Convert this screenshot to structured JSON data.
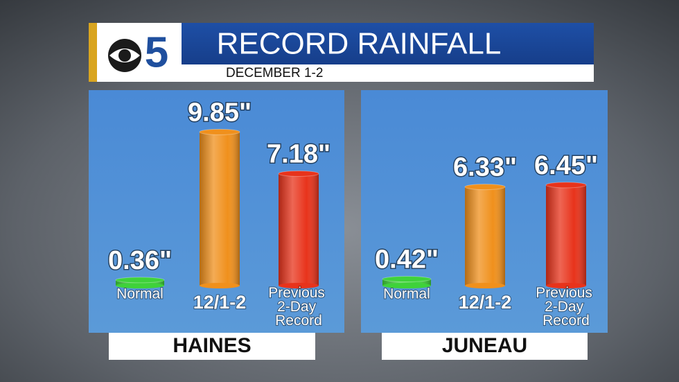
{
  "header": {
    "logo": "5",
    "title": "RECORD RAINFALL",
    "subtitle": "DECEMBER 1-2"
  },
  "chart_data": [
    {
      "type": "bar",
      "title": "HAINES",
      "categories": [
        "Normal",
        "12/1-2",
        "Previous 2-Day Record"
      ],
      "values": [
        0.36,
        9.85,
        7.18
      ],
      "value_labels": [
        "0.36\"",
        "9.85\"",
        "7.18\""
      ],
      "colors": [
        "#3fd23a",
        "#f0901c",
        "#e8331b"
      ]
    },
    {
      "type": "bar",
      "title": "JUNEAU",
      "categories": [
        "Normal",
        "12/1-2",
        "Previous 2-Day Record"
      ],
      "values": [
        0.42,
        6.33,
        6.45
      ],
      "value_labels": [
        "0.42\"",
        "6.33\"",
        "6.45\""
      ],
      "colors": [
        "#3fd23a",
        "#f0901c",
        "#e8331b"
      ]
    }
  ]
}
